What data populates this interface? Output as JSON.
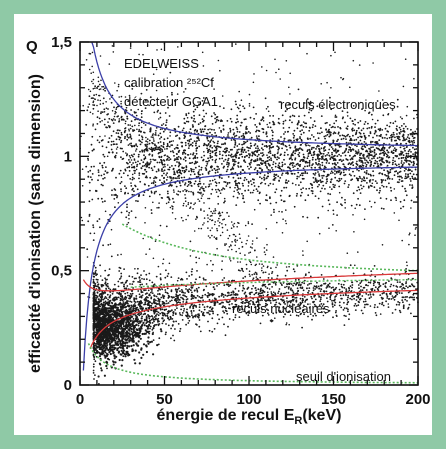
{
  "chart_data": {
    "type": "scatter",
    "title_lines": [
      "EDELWEISS",
      "calibration ²⁵²Cf",
      "détecteur GGA1"
    ],
    "xlabel": "énergie de recul E",
    "xlabel_sub": "R",
    "xlabel_unit": "(keV)",
    "ylabel": "efficacité d'ionisation (sans dimension)",
    "y_axis_letter": "Q",
    "xlim": [
      0,
      200
    ],
    "ylim": [
      0,
      1.5
    ],
    "x_ticks": [
      "0",
      "50",
      "100",
      "150",
      "200"
    ],
    "y_ticks": [
      "0",
      "0,5",
      "1",
      "1,5"
    ],
    "x_tick_values": [
      0,
      50,
      100,
      150,
      200
    ],
    "y_tick_values": [
      0,
      0.5,
      1,
      1.5
    ],
    "grid": false,
    "series": [
      {
        "name": "reculs électroniques",
        "color": "#3b3fa8",
        "center": 1.0,
        "band": [
          0.88,
          1.12
        ]
      },
      {
        "name": "reculs nucléaires",
        "color": "#d9393a",
        "center": 0.35,
        "band": [
          0.28,
          0.45
        ]
      },
      {
        "name": "seuil d'ionisation",
        "color": "#59b85b",
        "values_at": [
          [
            10,
            0.2
          ],
          [
            20,
            0.1
          ],
          [
            50,
            0.04
          ],
          [
            100,
            0.02
          ],
          [
            200,
            0.01
          ]
        ]
      }
    ]
  }
}
